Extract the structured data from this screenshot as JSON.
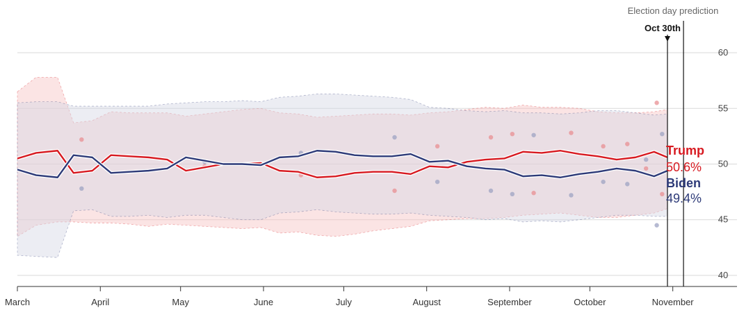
{
  "chart_data": {
    "type": "line",
    "title": "",
    "xlabel": "",
    "ylabel": "",
    "ylim": [
      39,
      61
    ],
    "y_ticks": [
      40,
      45,
      50,
      55,
      60
    ],
    "grid": "horizontal",
    "x_domain": [
      "2024-03-01",
      "2024-11-25"
    ],
    "x_ticks": [
      {
        "date": "2024-03-01",
        "label": "March"
      },
      {
        "date": "2024-04-01",
        "label": "April"
      },
      {
        "date": "2024-05-01",
        "label": "May"
      },
      {
        "date": "2024-06-01",
        "label": "June"
      },
      {
        "date": "2024-07-01",
        "label": "July"
      },
      {
        "date": "2024-08-01",
        "label": "August"
      },
      {
        "date": "2024-09-01",
        "label": "September"
      },
      {
        "date": "2024-10-01",
        "label": "October"
      },
      {
        "date": "2024-11-01",
        "label": "November"
      }
    ],
    "prediction": {
      "title": "Election day prediction",
      "date_label": "Oct 30th",
      "marker_date": "2024-10-30",
      "election_date": "2024-11-05"
    },
    "series": [
      {
        "name": "Trump",
        "color": "#d71920",
        "band_color": "#f6c4c4",
        "end_value": 50.6,
        "end_label": "50.6%",
        "x": [
          "2024-03-01",
          "2024-03-08",
          "2024-03-16",
          "2024-03-22",
          "2024-03-29",
          "2024-04-05",
          "2024-04-12",
          "2024-04-19",
          "2024-04-26",
          "2024-05-03",
          "2024-05-10",
          "2024-05-17",
          "2024-05-24",
          "2024-05-31",
          "2024-06-07",
          "2024-06-14",
          "2024-06-21",
          "2024-06-28",
          "2024-07-05",
          "2024-07-12",
          "2024-07-19",
          "2024-07-26",
          "2024-08-02",
          "2024-08-09",
          "2024-08-16",
          "2024-08-23",
          "2024-08-30",
          "2024-09-06",
          "2024-09-13",
          "2024-09-20",
          "2024-09-27",
          "2024-10-04",
          "2024-10-11",
          "2024-10-18",
          "2024-10-25",
          "2024-10-30"
        ],
        "values": [
          50.5,
          51.0,
          51.2,
          49.2,
          49.4,
          50.8,
          50.7,
          50.6,
          50.4,
          49.4,
          49.7,
          50.0,
          50.0,
          50.1,
          49.4,
          49.3,
          48.8,
          48.9,
          49.2,
          49.3,
          49.3,
          49.1,
          49.8,
          49.7,
          50.2,
          50.4,
          50.5,
          51.1,
          51.0,
          51.2,
          50.9,
          50.7,
          50.4,
          50.6,
          51.1,
          50.6
        ],
        "lower": [
          43.5,
          44.5,
          44.8,
          44.8,
          44.7,
          44.7,
          44.6,
          44.4,
          44.6,
          44.5,
          44.4,
          44.3,
          44.2,
          44.3,
          43.8,
          43.9,
          43.6,
          43.5,
          43.7,
          44.0,
          44.2,
          44.4,
          44.9,
          45.0,
          45.1,
          45.1,
          45.2,
          45.4,
          45.5,
          45.6,
          45.4,
          45.2,
          45.2,
          45.4,
          45.6,
          46.0
        ],
        "upper": [
          56.5,
          57.8,
          57.8,
          53.7,
          53.9,
          54.7,
          54.6,
          54.6,
          54.6,
          54.3,
          54.5,
          54.7,
          54.9,
          55.0,
          54.6,
          54.5,
          54.2,
          54.3,
          54.4,
          54.5,
          54.5,
          54.4,
          54.6,
          54.7,
          54.9,
          55.1,
          55.0,
          55.3,
          55.1,
          55.1,
          55.0,
          54.7,
          54.6,
          54.6,
          54.7,
          54.9
        ]
      },
      {
        "name": "Biden",
        "color": "#2d3a78",
        "band_color": "#d5d8e4",
        "end_value": 49.4,
        "end_label": "49.4%",
        "x": [
          "2024-03-01",
          "2024-03-08",
          "2024-03-16",
          "2024-03-22",
          "2024-03-29",
          "2024-04-05",
          "2024-04-12",
          "2024-04-19",
          "2024-04-26",
          "2024-05-03",
          "2024-05-10",
          "2024-05-17",
          "2024-05-24",
          "2024-05-31",
          "2024-06-07",
          "2024-06-14",
          "2024-06-21",
          "2024-06-28",
          "2024-07-05",
          "2024-07-12",
          "2024-07-19",
          "2024-07-26",
          "2024-08-02",
          "2024-08-09",
          "2024-08-16",
          "2024-08-23",
          "2024-08-30",
          "2024-09-06",
          "2024-09-13",
          "2024-09-20",
          "2024-09-27",
          "2024-10-04",
          "2024-10-11",
          "2024-10-18",
          "2024-10-25",
          "2024-10-30"
        ],
        "values": [
          49.5,
          49.0,
          48.8,
          50.8,
          50.6,
          49.2,
          49.3,
          49.4,
          49.6,
          50.6,
          50.3,
          50.0,
          50.0,
          49.9,
          50.6,
          50.7,
          51.2,
          51.1,
          50.8,
          50.7,
          50.7,
          50.9,
          50.2,
          50.3,
          49.8,
          49.6,
          49.5,
          48.9,
          49.0,
          48.8,
          49.1,
          49.3,
          49.6,
          49.4,
          48.9,
          49.4
        ],
        "lower": [
          41.8,
          41.7,
          41.6,
          45.8,
          45.9,
          45.3,
          45.3,
          45.4,
          45.2,
          45.4,
          45.4,
          45.2,
          45.0,
          45.0,
          45.6,
          45.7,
          45.9,
          45.7,
          45.6,
          45.5,
          45.5,
          45.6,
          45.4,
          45.3,
          45.2,
          45.0,
          45.1,
          44.8,
          44.9,
          44.8,
          45.0,
          45.2,
          45.4,
          45.4,
          45.3,
          45.3
        ],
        "upper": [
          55.5,
          55.6,
          55.6,
          55.2,
          55.2,
          55.2,
          55.2,
          55.2,
          55.4,
          55.5,
          55.6,
          55.6,
          55.7,
          55.6,
          56.0,
          56.1,
          56.3,
          56.3,
          56.2,
          56.1,
          56.0,
          55.8,
          55.1,
          55.0,
          54.8,
          54.7,
          54.8,
          54.6,
          54.6,
          54.5,
          54.6,
          54.8,
          54.8,
          54.6,
          54.4,
          54.5
        ]
      }
    ],
    "polls": [
      {
        "date": "2024-03-25",
        "trump": 52.2,
        "biden": 47.8
      },
      {
        "date": "2024-05-10",
        "trump": 49.8,
        "biden": 50.2
      },
      {
        "date": "2024-06-15",
        "trump": 49.0,
        "biden": 51.0
      },
      {
        "date": "2024-07-20",
        "trump": 47.6,
        "biden": 52.4
      },
      {
        "date": "2024-08-05",
        "trump": 51.6,
        "biden": 48.4
      },
      {
        "date": "2024-08-25",
        "trump": 52.4,
        "biden": 47.6
      },
      {
        "date": "2024-09-02",
        "trump": 52.7,
        "biden": 47.3
      },
      {
        "date": "2024-09-10",
        "trump": 47.4,
        "biden": 52.6
      },
      {
        "date": "2024-09-24",
        "trump": 52.8,
        "biden": 47.2
      },
      {
        "date": "2024-10-06",
        "trump": 51.6,
        "biden": 48.4
      },
      {
        "date": "2024-10-15",
        "trump": 51.8,
        "biden": 48.2
      },
      {
        "date": "2024-10-22",
        "trump": 49.6,
        "biden": 50.4
      },
      {
        "date": "2024-10-26",
        "trump": 55.5,
        "biden": 44.5
      },
      {
        "date": "2024-10-28",
        "trump": 47.3,
        "biden": 52.7
      }
    ]
  }
}
